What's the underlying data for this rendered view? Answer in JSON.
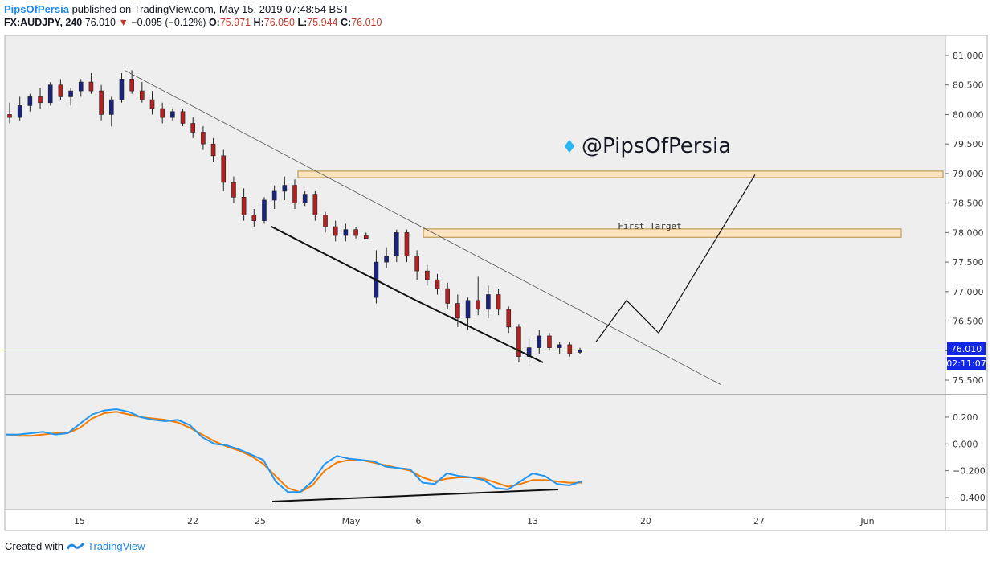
{
  "header": {
    "author": "PipsOfPersia",
    "published_text": "published on TradingView.com, May 15, 2019 07:48:54 BST",
    "symbol": "FX:AUDJPY, 240",
    "last": "76.010",
    "change": "−0.095 (−0.12%)",
    "o_label": "O:",
    "o_value": "75.971",
    "h_label": "H:",
    "h_value": "76.050",
    "l_label": "L:",
    "l_value": "75.944",
    "c_label": "C:",
    "c_value": "76.010"
  },
  "watermark": "@PipsOfPersia",
  "first_target_label": "First Target",
  "price_badge": "76.010",
  "time_badge": "02:11:07",
  "footer": {
    "created_with": "Created with",
    "brand": "TradingView"
  },
  "colors": {
    "up": "#1a237e",
    "down": "#b22222",
    "macd": "#2196f3",
    "signal": "#f57c00",
    "zone": "#fbe3c0"
  },
  "chart_data": [
    {
      "type": "candlestick",
      "symbol": "FX:AUDJPY",
      "timeframe": "240",
      "y_ticks": [
        75.5,
        76.0,
        76.5,
        77.0,
        77.5,
        78.0,
        78.5,
        79.0,
        79.5,
        80.0,
        80.5,
        81.0
      ],
      "x_ticks": [
        "15",
        "22",
        "25",
        "May",
        "6",
        "13",
        "20",
        "27",
        "Jun"
      ],
      "ylim": [
        75.22,
        81.37
      ],
      "last_price": 76.01,
      "ohlc": [
        [
          80.0,
          80.2,
          79.85,
          79.95
        ],
        [
          79.95,
          80.3,
          79.9,
          80.15
        ],
        [
          80.15,
          80.35,
          80.05,
          80.3
        ],
        [
          80.3,
          80.45,
          80.1,
          80.2
        ],
        [
          80.2,
          80.55,
          80.15,
          80.5
        ],
        [
          80.5,
          80.6,
          80.25,
          80.3
        ],
        [
          80.3,
          80.45,
          80.15,
          80.4
        ],
        [
          80.4,
          80.6,
          80.3,
          80.55
        ],
        [
          80.55,
          80.7,
          80.35,
          80.4
        ],
        [
          80.4,
          80.5,
          79.9,
          80.0
        ],
        [
          80.0,
          80.3,
          79.8,
          80.25
        ],
        [
          80.25,
          80.7,
          80.2,
          80.6
        ],
        [
          80.6,
          80.75,
          80.35,
          80.4
        ],
        [
          80.4,
          80.55,
          80.2,
          80.25
        ],
        [
          80.25,
          80.4,
          80.0,
          80.1
        ],
        [
          80.1,
          80.2,
          79.85,
          79.95
        ],
        [
          79.95,
          80.1,
          79.9,
          80.05
        ],
        [
          80.05,
          80.1,
          79.8,
          79.85
        ],
        [
          79.85,
          79.95,
          79.6,
          79.7
        ],
        [
          79.7,
          79.8,
          79.4,
          79.5
        ],
        [
          79.5,
          79.6,
          79.2,
          79.3
        ],
        [
          79.3,
          79.4,
          78.7,
          78.85
        ],
        [
          78.85,
          78.95,
          78.5,
          78.6
        ],
        [
          78.6,
          78.75,
          78.2,
          78.3
        ],
        [
          78.3,
          78.4,
          78.1,
          78.2
        ],
        [
          78.2,
          78.6,
          78.15,
          78.55
        ],
        [
          78.55,
          78.8,
          78.4,
          78.7
        ],
        [
          78.7,
          78.95,
          78.55,
          78.8
        ],
        [
          78.8,
          78.9,
          78.4,
          78.5
        ],
        [
          78.5,
          78.7,
          78.45,
          78.65
        ],
        [
          78.65,
          78.7,
          78.2,
          78.3
        ],
        [
          78.3,
          78.35,
          78.0,
          78.1
        ],
        [
          78.1,
          78.2,
          77.85,
          77.95
        ],
        [
          77.95,
          78.15,
          77.85,
          78.05
        ],
        [
          78.05,
          78.1,
          77.9,
          77.95
        ],
        [
          77.95,
          78.0,
          77.9,
          77.9
        ],
        [
          76.9,
          77.7,
          76.8,
          77.5
        ],
        [
          77.5,
          77.75,
          77.4,
          77.6
        ],
        [
          77.6,
          78.05,
          77.5,
          78.0
        ],
        [
          78.0,
          78.05,
          77.5,
          77.6
        ],
        [
          77.6,
          77.7,
          77.2,
          77.35
        ],
        [
          77.35,
          77.45,
          77.1,
          77.2
        ],
        [
          77.2,
          77.3,
          76.95,
          77.05
        ],
        [
          77.05,
          77.15,
          76.7,
          76.8
        ],
        [
          76.8,
          76.95,
          76.4,
          76.55
        ],
        [
          76.55,
          76.9,
          76.35,
          76.85
        ],
        [
          76.85,
          77.25,
          76.6,
          76.7
        ],
        [
          76.7,
          77.1,
          76.55,
          76.95
        ],
        [
          76.95,
          77.05,
          76.6,
          76.7
        ],
        [
          76.7,
          76.75,
          76.3,
          76.4
        ],
        [
          76.4,
          76.45,
          75.8,
          75.9
        ],
        [
          75.9,
          76.2,
          75.75,
          76.05
        ],
        [
          76.05,
          76.35,
          75.95,
          76.25
        ],
        [
          76.25,
          76.3,
          76.0,
          76.05
        ],
        [
          76.05,
          76.15,
          75.95,
          76.1
        ],
        [
          76.1,
          76.15,
          75.9,
          75.95
        ],
        [
          75.97,
          76.05,
          75.94,
          76.01
        ]
      ],
      "resistance_zones": [
        {
          "low": 78.93,
          "high": 79.0,
          "label": ""
        },
        {
          "low": 77.92,
          "high": 78.02,
          "label": "First Target"
        }
      ],
      "descending_trendline": [
        [
          80.75,
          75.42
        ]
      ],
      "projection_path": [
        76.15,
        76.85,
        76.3,
        78.98
      ]
    },
    {
      "type": "line",
      "indicator": "MACD",
      "y_ticks": [
        0.2,
        0.0,
        -0.2,
        -0.4
      ],
      "ylim": [
        -0.48,
        0.31
      ],
      "series": [
        {
          "color": "#2196f3",
          "values": [
            0.07,
            0.07,
            0.08,
            0.09,
            0.07,
            0.08,
            0.15,
            0.22,
            0.25,
            0.26,
            0.24,
            0.2,
            0.18,
            0.17,
            0.18,
            0.14,
            0.05,
            0.0,
            -0.01,
            -0.04,
            -0.08,
            -0.12,
            -0.28,
            -0.36,
            -0.36,
            -0.28,
            -0.15,
            -0.09,
            -0.11,
            -0.12,
            -0.13,
            -0.17,
            -0.18,
            -0.19,
            -0.29,
            -0.3,
            -0.22,
            -0.24,
            -0.25,
            -0.27,
            -0.33,
            -0.34,
            -0.28,
            -0.22,
            -0.24,
            -0.3,
            -0.31,
            -0.28
          ]
        },
        {
          "color": "#f57c00",
          "values": [
            0.07,
            0.06,
            0.06,
            0.07,
            0.08,
            0.08,
            0.12,
            0.19,
            0.23,
            0.24,
            0.22,
            0.2,
            0.19,
            0.18,
            0.16,
            0.12,
            0.07,
            0.02,
            -0.02,
            -0.05,
            -0.09,
            -0.15,
            -0.24,
            -0.33,
            -0.36,
            -0.31,
            -0.2,
            -0.14,
            -0.12,
            -0.12,
            -0.14,
            -0.16,
            -0.18,
            -0.2,
            -0.25,
            -0.28,
            -0.26,
            -0.25,
            -0.25,
            -0.26,
            -0.29,
            -0.32,
            -0.3,
            -0.27,
            -0.27,
            -0.28,
            -0.29,
            -0.29
          ]
        }
      ],
      "divergence_line": [
        -0.43,
        -0.34
      ]
    }
  ]
}
